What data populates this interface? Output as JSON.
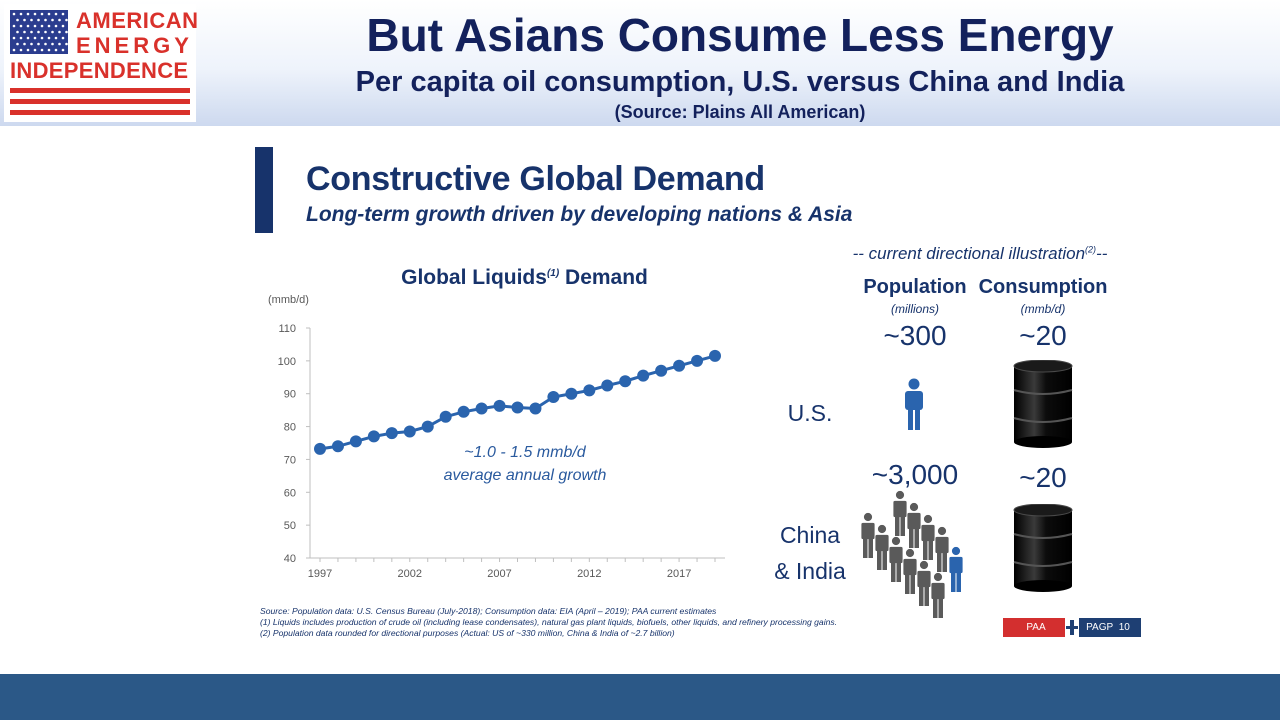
{
  "header": {
    "title": "But Asians Consume Less Energy",
    "subtitle": "Per capita oil consumption, U.S. versus China and India",
    "source": "(Source: Plains All American)"
  },
  "logo": {
    "line1": "AMERICAN",
    "line2": "ENERGY",
    "line3": "INDEPENDENCE",
    "icon": "us-flag-icon"
  },
  "slide": {
    "title": "Constructive Global Demand",
    "subtitle": "Long-term growth driven by developing nations & Asia"
  },
  "chart_data": {
    "type": "line",
    "title": "Global Liquids",
    "title_superscript": "(1)",
    "title_suffix": "Demand",
    "ylabel": "(mmb/d)",
    "xlabel": "",
    "ylim": [
      40,
      110
    ],
    "yticks": [
      40,
      50,
      60,
      70,
      80,
      90,
      100,
      110
    ],
    "xticks": [
      "1997",
      "2002",
      "2007",
      "2012",
      "2017"
    ],
    "x": [
      1997,
      1998,
      1999,
      2000,
      2001,
      2002,
      2003,
      2004,
      2005,
      2006,
      2007,
      2008,
      2009,
      2010,
      2011,
      2012,
      2013,
      2014,
      2015,
      2016,
      2017,
      2018,
      2019
    ],
    "series": [
      {
        "values": [
          73.2,
          74.0,
          75.5,
          77.0,
          78.0,
          78.5,
          80.0,
          83.0,
          84.5,
          85.5,
          86.3,
          85.8,
          85.5,
          89.0,
          90.0,
          91.0,
          92.5,
          93.8,
          95.5,
          97.0,
          98.5,
          100.0,
          101.5
        ],
        "color": "#2a64ae"
      }
    ],
    "annotation_line1": "~1.0 - 1.5 mmb/d",
    "annotation_line2": "average annual growth",
    "grid": false,
    "colors": {
      "axis": "#bfbfbf",
      "text": "#595959"
    }
  },
  "illustration": {
    "caption": "-- current directional illustration",
    "caption_sup": "(2)",
    "caption_end": "--",
    "population_header": "Population",
    "population_unit": "(millions)",
    "consumption_header": "Consumption",
    "consumption_unit": "(mmb/d)",
    "rows": [
      {
        "label_line1": "U.S.",
        "label_line2": "",
        "population": "~300",
        "consumption": "~20",
        "people_icon": "person-icon",
        "barrel_icon": "oil-barrel-icon"
      },
      {
        "label_line1": "China",
        "label_line2": "& India",
        "population": "~3,000",
        "consumption": "~20",
        "people_icon": "crowd-icon",
        "barrel_icon": "oil-barrel-icon"
      }
    ],
    "colors": {
      "blue_person": "#2a64ae",
      "gray_person": "#5a5a5a"
    }
  },
  "footnotes": [
    "Source: Population data: U.S. Census Bureau (July-2018); Consumption data: EIA (April – 2019); PAA current estimates",
    "(1) Liquids includes production of crude oil (including lease condensates), natural gas plant liquids, biofuels, other liquids, and refinery processing gains.",
    "(2) Population data rounded for directional purposes (Actual: US of ~330 million, China & India of ~2.7 billion)"
  ],
  "footer": {
    "paa": "PAA",
    "pagp": "PAGP",
    "page": "10"
  },
  "colors": {
    "navy": "#17336b",
    "red": "#d32f2f",
    "band": "#2b5887"
  }
}
